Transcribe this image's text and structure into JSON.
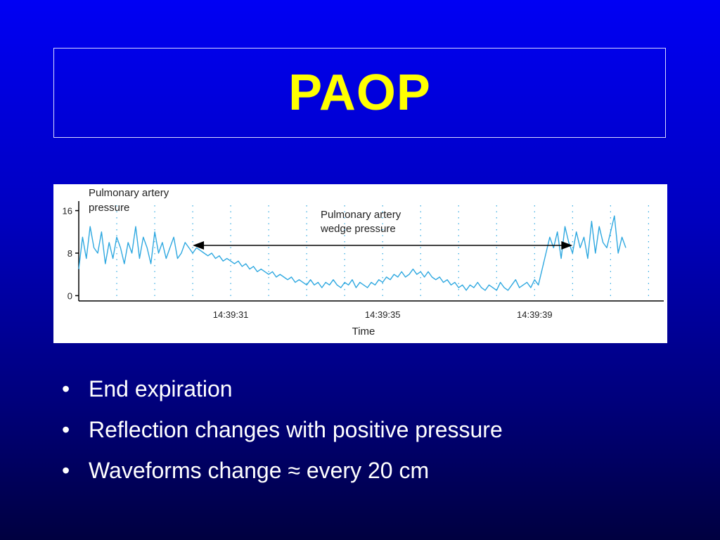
{
  "slide": {
    "title": "PAOP",
    "bullets": [
      {
        "text": "End expiration"
      },
      {
        "text": "Reflection changes with positive pressure"
      },
      {
        "text": "Waveforms change ≈ every 20 cm"
      }
    ],
    "bullet_glyph": "•"
  },
  "chart_data": {
    "type": "line",
    "title": "",
    "annotations": {
      "pa_label": [
        "Pulmonary artery",
        "pressure"
      ],
      "wedge_label": [
        "Pulmonary artery",
        "wedge pressure"
      ]
    },
    "xlabel": "Time",
    "ylabel": "",
    "x_tick_labels": [
      "14:39:31",
      "14:39:35",
      "14:39:39"
    ],
    "x_tick_positions_s": [
      4,
      8,
      12
    ],
    "xlim_s": [
      0,
      15.4
    ],
    "y_ticks": [
      0,
      8,
      16
    ],
    "ylim": [
      -1,
      17
    ],
    "wedge_interval_s": [
      3,
      13
    ],
    "colors": {
      "line": "#2ea8e0",
      "axis": "#000000",
      "grid": "#2ea8e0"
    },
    "series": [
      {
        "name": "pressure",
        "t_step_s": 0.1,
        "values": [
          5,
          11,
          7,
          13,
          9,
          8,
          12,
          6,
          10,
          7,
          11,
          9,
          6,
          10,
          8,
          13,
          7,
          11,
          9,
          6,
          12,
          8,
          10,
          7,
          9,
          11,
          7,
          8,
          10,
          9,
          8,
          9,
          8.5,
          8,
          7.5,
          8,
          7,
          7.5,
          6.5,
          7,
          6.5,
          6,
          6.5,
          5.5,
          6,
          5,
          5.5,
          4.5,
          5,
          4.5,
          4,
          4.5,
          3.5,
          4,
          3.5,
          3,
          3.5,
          2.5,
          3,
          2.5,
          2,
          3,
          2,
          2.5,
          1.5,
          2.5,
          2,
          3,
          2,
          1.5,
          2.5,
          2,
          3,
          1.5,
          2.5,
          2,
          1.5,
          2.5,
          2,
          3,
          2.5,
          3.5,
          3,
          4,
          3.5,
          4.5,
          3.5,
          4,
          5,
          4,
          4.5,
          3.5,
          4.5,
          3.5,
          3,
          3.5,
          2.5,
          3,
          2,
          2.5,
          1.5,
          2,
          1,
          2,
          1.5,
          2.5,
          1.5,
          1,
          2,
          1.5,
          1,
          2.5,
          1.5,
          1,
          2,
          3,
          1.5,
          2,
          2.5,
          1.5,
          3,
          2,
          5,
          8,
          11,
          9,
          12,
          7,
          13,
          10,
          8,
          12,
          9,
          11,
          7,
          14,
          8,
          13,
          10,
          9,
          12,
          15,
          8,
          11,
          9
        ]
      }
    ]
  }
}
